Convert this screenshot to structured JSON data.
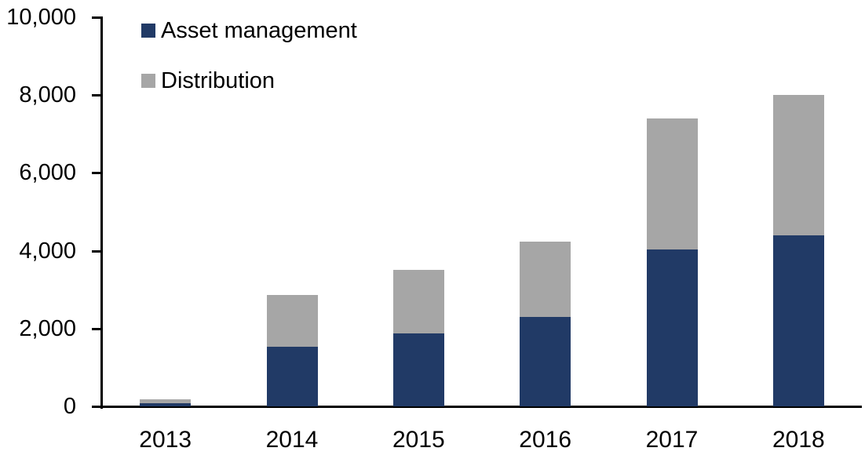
{
  "chart_data": {
    "type": "bar",
    "stacked": true,
    "title": "",
    "xlabel": "",
    "ylabel": "",
    "categories": [
      "2013",
      "2014",
      "2015",
      "2016",
      "2017",
      "2018"
    ],
    "series": [
      {
        "name": "Asset management",
        "color": "#213a66",
        "values": [
          80,
          1530,
          1870,
          2290,
          4030,
          4400
        ]
      },
      {
        "name": "Distribution",
        "color": "#a6a6a6",
        "values": [
          100,
          1330,
          1630,
          1950,
          3360,
          3600
        ]
      }
    ],
    "stack_totals": [
      180,
      2860,
      3500,
      4240,
      7390,
      8000
    ],
    "ylim": [
      0,
      10000
    ],
    "ytick_step": 2000,
    "ytick_labels": [
      "0",
      "2,000",
      "4,000",
      "6,000",
      "8,000",
      "10,000"
    ],
    "grid": false,
    "legend_position": "top-left",
    "axis_color": "#000000",
    "background_color": "#ffffff"
  }
}
